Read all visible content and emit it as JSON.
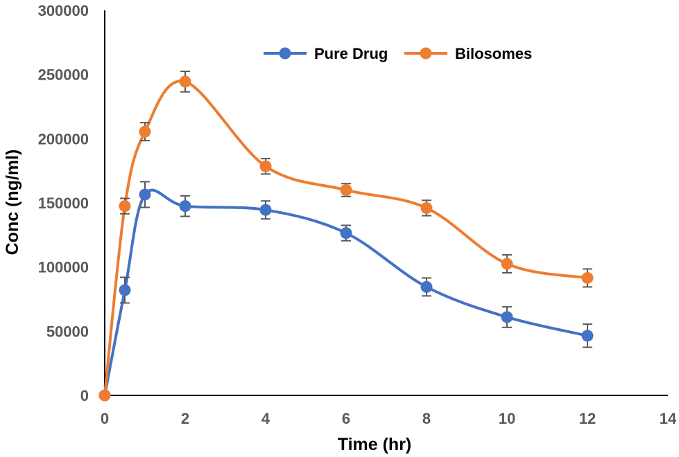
{
  "chart_data": {
    "type": "line",
    "title": "",
    "xlabel": "Time (hr)",
    "ylabel": "Conc (ng/ml)",
    "xlim": [
      0,
      14
    ],
    "ylim": [
      0,
      300000
    ],
    "x_ticks": [
      "0",
      "2",
      "4",
      "6",
      "8",
      "10",
      "12",
      "14"
    ],
    "y_ticks": [
      "0",
      "50000",
      "100000",
      "150000",
      "200000",
      "250000",
      "300000"
    ],
    "grid": false,
    "legend_position": "top-right",
    "smooth": true,
    "x": [
      0,
      0.5,
      1,
      2,
      4,
      6,
      8,
      10,
      12
    ],
    "series": [
      {
        "name": "Pure Drug",
        "color": "#4472C4",
        "values": [
          0,
          82000,
          156500,
          147500,
          144500,
          126500,
          84500,
          61000,
          46500
        ],
        "errors": [
          0,
          10000,
          10000,
          8000,
          7000,
          6000,
          7000,
          8000,
          9000
        ]
      },
      {
        "name": "Bilosomes",
        "color": "#ED7D31",
        "values": [
          0,
          147500,
          205500,
          244500,
          178500,
          160000,
          146000,
          102500,
          91500
        ],
        "errors": [
          0,
          6000,
          7000,
          8000,
          6000,
          5000,
          6000,
          7000,
          7000
        ]
      }
    ],
    "axis_color": "#000000",
    "tick_label_color": "#595959",
    "error_bar_color": "#595959"
  }
}
